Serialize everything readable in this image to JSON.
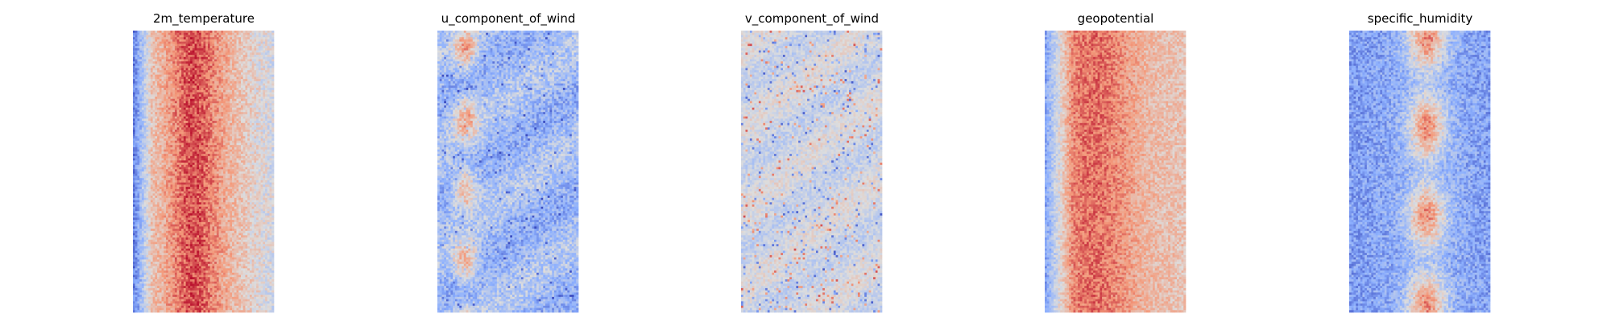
{
  "chart_data": [
    {
      "type": "heatmap",
      "title": "2m_temperature",
      "colormap": "coolwarm",
      "pattern": "warm-core band, cool left edge",
      "grid": false,
      "axes": "off"
    },
    {
      "type": "heatmap",
      "title": "u_component_of_wind",
      "colormap": "coolwarm",
      "pattern": "mostly cool with scattered warm streaks on left",
      "grid": false,
      "axes": "off"
    },
    {
      "type": "heatmap",
      "title": "v_component_of_wind",
      "colormap": "coolwarm",
      "pattern": "near-neutral with sparse warm and cool spots",
      "grid": false,
      "axes": "off"
    },
    {
      "type": "heatmap",
      "title": "geopotential",
      "colormap": "coolwarm",
      "pattern": "warm band, cool left edge, red core left of center",
      "grid": false,
      "axes": "off"
    },
    {
      "type": "heatmap",
      "title": "specific_humidity",
      "colormap": "coolwarm",
      "pattern": "cool field with warm vertical streak at center",
      "grid": false,
      "axes": "off"
    }
  ]
}
